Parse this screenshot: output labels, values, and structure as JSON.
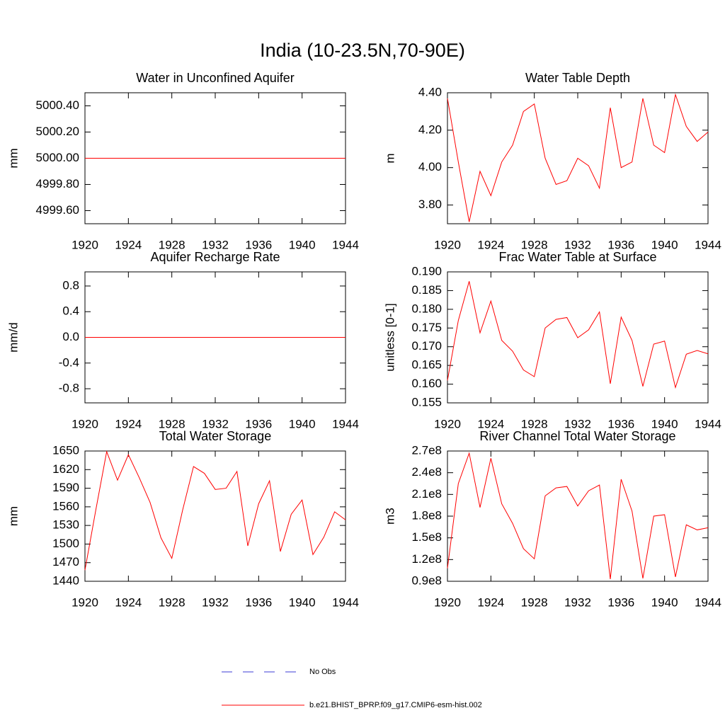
{
  "title": "India (10-23.5N,70-90E)",
  "legend": [
    {
      "name": "No Obs",
      "color": "#3b3bd6",
      "dashed": true
    },
    {
      "name": "b.e21.BHIST_BPRP.f09_g17.CMIP6-esm-hist.002",
      "color": "#ff0000",
      "dashed": false
    }
  ],
  "chart_data": [
    {
      "type": "line",
      "title": "Water in Unconfined Aquifer",
      "ylabel": "mm",
      "x": [
        1920,
        1921,
        1922,
        1923,
        1924,
        1925,
        1926,
        1927,
        1928,
        1929,
        1930,
        1931,
        1932,
        1933,
        1934,
        1935,
        1936,
        1937,
        1938,
        1939,
        1940,
        1941,
        1942,
        1943,
        1944
      ],
      "xlim": [
        1920,
        1944
      ],
      "xticks": [
        1920,
        1924,
        1928,
        1932,
        1936,
        1940,
        1944
      ],
      "ylim": [
        4999.5,
        5000.5
      ],
      "yticks": [
        {
          "value": 4999.6,
          "label": "4999.60"
        },
        {
          "value": 4999.8,
          "label": "4999.80"
        },
        {
          "value": 5000,
          "label": "5000.00"
        },
        {
          "value": 5000.2,
          "label": "5000.20"
        },
        {
          "value": 5000.4,
          "label": "5000.40"
        }
      ],
      "series": [
        {
          "color": "#ff0000",
          "values": [
            5000,
            5000,
            5000,
            5000,
            5000,
            5000,
            5000,
            5000,
            5000,
            5000,
            5000,
            5000,
            5000,
            5000,
            5000,
            5000,
            5000,
            5000,
            5000,
            5000,
            5000,
            5000,
            5000,
            5000,
            5000
          ]
        }
      ]
    },
    {
      "type": "line",
      "title": "Water Table Depth",
      "ylabel": "m",
      "x": [
        1920,
        1921,
        1922,
        1923,
        1924,
        1925,
        1926,
        1927,
        1928,
        1929,
        1930,
        1931,
        1932,
        1933,
        1934,
        1935,
        1936,
        1937,
        1938,
        1939,
        1940,
        1941,
        1942,
        1943,
        1944
      ],
      "xlim": [
        1920,
        1944
      ],
      "xticks": [
        1920,
        1924,
        1928,
        1932,
        1936,
        1940,
        1944
      ],
      "ylim": [
        3.7,
        4.4
      ],
      "yticks": [
        {
          "value": 3.8,
          "label": "3.80"
        },
        {
          "value": 4.0,
          "label": "4.00"
        },
        {
          "value": 4.2,
          "label": "4.20"
        },
        {
          "value": 4.4,
          "label": "4.40"
        }
      ],
      "series": [
        {
          "color": "#ff0000",
          "values": [
            4.37,
            4.03,
            3.71,
            3.98,
            3.85,
            4.03,
            4.12,
            4.3,
            4.34,
            4.05,
            3.91,
            3.93,
            4.05,
            4.01,
            3.89,
            4.32,
            4.0,
            4.03,
            4.37,
            4.12,
            4.08,
            4.39,
            4.22,
            4.14,
            4.19
          ]
        }
      ]
    },
    {
      "type": "line",
      "title": "Aquifer Recharge Rate",
      "ylabel": "mm/d",
      "x": [
        1920,
        1921,
        1922,
        1923,
        1924,
        1925,
        1926,
        1927,
        1928,
        1929,
        1930,
        1931,
        1932,
        1933,
        1934,
        1935,
        1936,
        1937,
        1938,
        1939,
        1940,
        1941,
        1942,
        1943,
        1944
      ],
      "xlim": [
        1920,
        1944
      ],
      "xticks": [
        1920,
        1924,
        1928,
        1932,
        1936,
        1940,
        1944
      ],
      "ylim": [
        -1.02,
        1.02
      ],
      "yticks": [
        -0.8,
        -0.4,
        {
          "value": 0,
          "label": "0.0"
        },
        0.4,
        0.8
      ],
      "series": [
        {
          "color": "#ff0000",
          "values": [
            0,
            0,
            0,
            0,
            0,
            0,
            0,
            0,
            0,
            0,
            0,
            0,
            0,
            0,
            0,
            0,
            0,
            0,
            0,
            0,
            0,
            0,
            0,
            0,
            0
          ]
        }
      ]
    },
    {
      "type": "line",
      "title": "Frac Water Table at Surface",
      "ylabel": "unitless [0-1]",
      "x": [
        1920,
        1921,
        1922,
        1923,
        1924,
        1925,
        1926,
        1927,
        1928,
        1929,
        1930,
        1931,
        1932,
        1933,
        1934,
        1935,
        1936,
        1937,
        1938,
        1939,
        1940,
        1941,
        1942,
        1943,
        1944
      ],
      "xlim": [
        1920,
        1944
      ],
      "xticks": [
        1920,
        1924,
        1928,
        1932,
        1936,
        1940,
        1944
      ],
      "ylim": [
        0.155,
        0.19
      ],
      "yticks": [
        0.155,
        {
          "value": 0.16,
          "label": "0.160"
        },
        0.165,
        {
          "value": 0.17,
          "label": "0.170"
        },
        0.175,
        {
          "value": 0.18,
          "label": "0.180"
        },
        0.185,
        {
          "value": 0.19,
          "label": "0.190"
        }
      ],
      "series": [
        {
          "color": "#ff0000",
          "values": [
            0.161,
            0.177,
            0.1875,
            0.1737,
            0.1822,
            0.1717,
            0.1688,
            0.1638,
            0.162,
            0.175,
            0.1773,
            0.1778,
            0.1724,
            0.1745,
            0.1793,
            0.1601,
            0.1779,
            0.1717,
            0.1594,
            0.1707,
            0.1715,
            0.1591,
            0.168,
            0.169,
            0.1681
          ]
        }
      ]
    },
    {
      "type": "line",
      "title": "Total Water Storage",
      "ylabel": "mm",
      "x": [
        1920,
        1921,
        1922,
        1923,
        1924,
        1925,
        1926,
        1927,
        1928,
        1929,
        1930,
        1931,
        1932,
        1933,
        1934,
        1935,
        1936,
        1937,
        1938,
        1939,
        1940,
        1941,
        1942,
        1943,
        1944
      ],
      "xlim": [
        1920,
        1944
      ],
      "xticks": [
        1920,
        1924,
        1928,
        1932,
        1936,
        1940,
        1944
      ],
      "ylim": [
        1440,
        1650
      ],
      "yticks": [
        1440,
        1470,
        1500,
        1530,
        1560,
        1590,
        1620,
        1650
      ],
      "series": [
        {
          "color": "#ff0000",
          "values": [
            1458,
            1555,
            1649,
            1603,
            1644,
            1607,
            1567,
            1510,
            1477,
            1555,
            1625,
            1614,
            1588,
            1590,
            1617,
            1497,
            1565,
            1602,
            1488,
            1548,
            1571,
            1483,
            1511,
            1552,
            1539
          ]
        }
      ]
    },
    {
      "type": "line",
      "title": "River Channel Total Water Storage",
      "ylabel": "m3",
      "x": [
        1920,
        1921,
        1922,
        1923,
        1924,
        1925,
        1926,
        1927,
        1928,
        1929,
        1930,
        1931,
        1932,
        1933,
        1934,
        1935,
        1936,
        1937,
        1938,
        1939,
        1940,
        1941,
        1942,
        1943,
        1944
      ],
      "xlim": [
        1920,
        1944
      ],
      "xticks": [
        1920,
        1924,
        1928,
        1932,
        1936,
        1940,
        1944
      ],
      "ylim": [
        90000000,
        270000000
      ],
      "yticks": [
        {
          "value": 90000000,
          "label": "0.9e8"
        },
        {
          "value": 120000000,
          "label": "1.2e8"
        },
        {
          "value": 150000000,
          "label": "1.5e8"
        },
        {
          "value": 180000000,
          "label": "1.8e8"
        },
        {
          "value": 210000000,
          "label": "2.1e8"
        },
        {
          "value": 240000000,
          "label": "2.4e8"
        },
        {
          "value": 270000000,
          "label": "2.7e8"
        }
      ],
      "series": [
        {
          "color": "#ff0000",
          "values": [
            108000000,
            225000000,
            267000000,
            192000000,
            260000000,
            197000000,
            170000000,
            135000000,
            121000000,
            208000000,
            219000000,
            221000000,
            194000000,
            215000000,
            223000000,
            93000000,
            231000000,
            187000000,
            94000000,
            180000000,
            182000000,
            96000000,
            168000000,
            161000000,
            164000000
          ]
        }
      ]
    }
  ]
}
